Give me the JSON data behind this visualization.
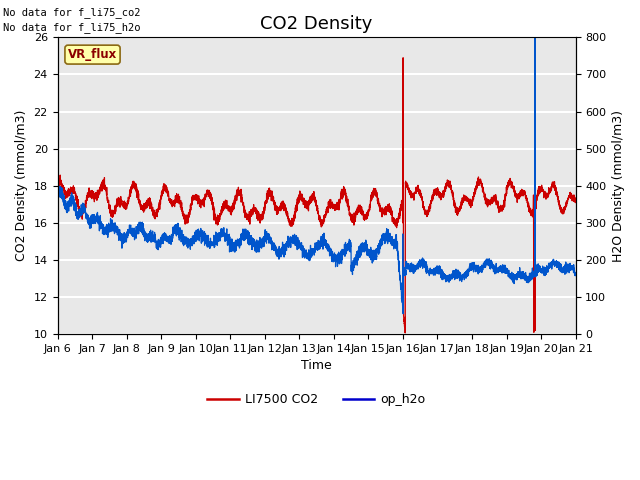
{
  "title": "CO2 Density",
  "xlabel": "Time",
  "ylabel_left": "CO2 Density (mmol/m3)",
  "ylabel_right": "H2O Density (mmol/m3)",
  "text_no_data1": "No data for f_li75_co2",
  "text_no_data2": "No data for f̲li75̲h2o",
  "vr_flux_label": "VR_flux",
  "legend_entries": [
    "LI7500 CO2",
    "op_h2o"
  ],
  "legend_colors": [
    "#cc0000",
    "#0000cc"
  ],
  "ylim_left": [
    10,
    26
  ],
  "ylim_right": [
    0,
    800
  ],
  "x_tick_labels": [
    "Jan 6",
    "Jan 7",
    "Jan 8",
    "Jan 9",
    "Jan 10",
    "Jan 11",
    "Jan 12",
    "Jan 13",
    "Jan 14",
    "Jan 15",
    "Jan 16",
    "Jan 17",
    "Jan 18",
    "Jan 19",
    "Jan 20",
    "Jan 21"
  ],
  "plot_bg_color": "#e8e8e8",
  "title_fontsize": 13,
  "label_fontsize": 9,
  "tick_fontsize": 8
}
